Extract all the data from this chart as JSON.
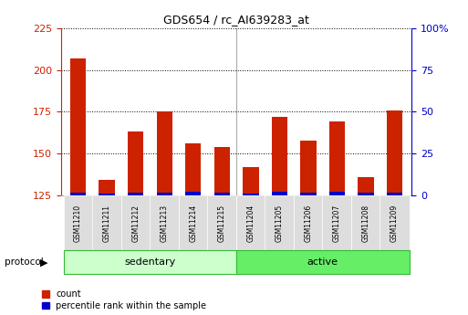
{
  "title": "GDS654 / rc_AI639283_at",
  "samples": [
    "GSM11210",
    "GSM11211",
    "GSM11212",
    "GSM11213",
    "GSM11214",
    "GSM11215",
    "GSM11204",
    "GSM11205",
    "GSM11206",
    "GSM11207",
    "GSM11208",
    "GSM11209"
  ],
  "count_values": [
    207,
    134,
    163,
    175,
    156,
    154,
    142,
    172,
    158,
    169,
    136,
    176
  ],
  "percentile_values": [
    1.8,
    1.2,
    1.8,
    1.5,
    2.0,
    1.8,
    1.2,
    2.0,
    1.7,
    2.0,
    1.5,
    1.8
  ],
  "ylim_left": [
    125,
    225
  ],
  "ylim_right": [
    0,
    100
  ],
  "yticks_left": [
    125,
    150,
    175,
    200,
    225
  ],
  "yticks_right": [
    0,
    25,
    50,
    75,
    100
  ],
  "groups": [
    {
      "label": "sedentary",
      "start": 0,
      "end": 5,
      "color": "#ccffcc"
    },
    {
      "label": "active",
      "start": 6,
      "end": 11,
      "color": "#66ee66"
    }
  ],
  "bar_color_red": "#cc2200",
  "bar_color_blue": "#0000cc",
  "bar_width": 0.55,
  "background_color": "#ffffff",
  "plot_bg_color": "#ffffff",
  "tick_label_color_left": "#cc2200",
  "tick_label_color_right": "#0000cc",
  "legend_count": "count",
  "legend_percentile": "percentile rank within the sample",
  "protocol_label": "protocol",
  "grid_color": "#000000",
  "separator_color": "#aaaaaa",
  "group_border_color": "#33bb33",
  "sample_bg_color": "#dddddd"
}
